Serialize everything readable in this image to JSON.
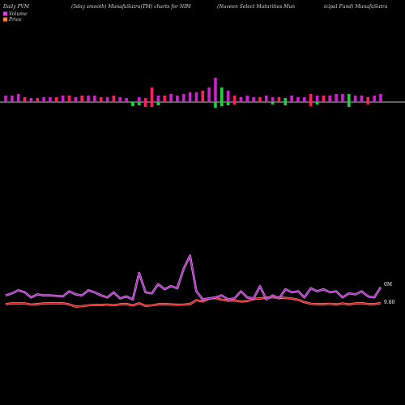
{
  "header": {
    "segments": [
      "Daily PVM",
      "(5day smooth) MunafaSutra(TM) charts for NIM",
      "(Nuveen Select Maturities Mun",
      "icipal Fund) MunafaSutra"
    ]
  },
  "legend": [
    {
      "label": "Volume",
      "color": "#e040e0"
    },
    {
      "label": "Price",
      "color": "#ff6020"
    }
  ],
  "chart_data": {
    "type": "line",
    "n": 60,
    "volume_bars": {
      "values": [
        8,
        8,
        10,
        6,
        5,
        5,
        6,
        6,
        6,
        8,
        8,
        6,
        8,
        8,
        8,
        6,
        6,
        8,
        6,
        5,
        -4,
        6,
        5,
        18,
        8,
        8,
        10,
        8,
        10,
        12,
        12,
        14,
        18,
        30,
        18,
        14,
        8,
        6,
        8,
        6,
        6,
        8,
        6,
        6,
        5,
        8,
        6,
        6,
        10,
        8,
        8,
        8,
        10,
        10,
        10,
        8,
        8,
        6,
        8,
        10
      ],
      "colors": [
        "#d020d0",
        "#d020d0",
        "#d020d0",
        "#ff2060",
        "#d020d0",
        "#ff2060",
        "#d020d0",
        "#d020d0",
        "#ff2060",
        "#d020d0",
        "#ff2060",
        "#d020d0",
        "#ff2060",
        "#d020d0",
        "#d020d0",
        "#ff2060",
        "#d020d0",
        "#ff2060",
        "#d020d0",
        "#d020d0",
        "#20d040",
        "#d020d0",
        "#ff2060",
        "#ff2060",
        "#d020d0",
        "#ff2060",
        "#d020d0",
        "#d020d0",
        "#d020d0",
        "#d020d0",
        "#d020d0",
        "#ff2060",
        "#d020d0",
        "#d020d0",
        "#20d040",
        "#d020d0",
        "#ff2060",
        "#d020d0",
        "#d020d0",
        "#d020d0",
        "#ff2060",
        "#d020d0",
        "#d020d0",
        "#ff2060",
        "#20d040",
        "#d020d0",
        "#d020d0",
        "#d020d0",
        "#ff2060",
        "#d020d0",
        "#ff2060",
        "#d020d0",
        "#d020d0",
        "#d020d0",
        "#20d040",
        "#d020d0",
        "#d020d0",
        "#ff2060",
        "#d020d0",
        "#d020d0"
      ],
      "down_values": [
        0,
        0,
        0,
        0,
        0,
        0,
        0,
        0,
        0,
        0,
        0,
        0,
        0,
        0,
        0,
        0,
        0,
        0,
        0,
        0,
        5,
        4,
        6,
        6,
        4,
        0,
        0,
        0,
        0,
        0,
        0,
        0,
        0,
        7,
        5,
        4,
        3,
        0,
        0,
        0,
        0,
        0,
        3,
        0,
        4,
        0,
        0,
        0,
        5,
        3,
        0,
        0,
        0,
        0,
        6,
        0,
        0,
        3,
        0,
        0
      ]
    },
    "volume_line": [
      18,
      22,
      28,
      24,
      14,
      20,
      18,
      18,
      17,
      16,
      26,
      20,
      18,
      28,
      24,
      18,
      14,
      24,
      12,
      16,
      10,
      62,
      24,
      22,
      40,
      30,
      36,
      32,
      70,
      96,
      26,
      10,
      12,
      14,
      18,
      10,
      12,
      26,
      14,
      12,
      36,
      10,
      18,
      12,
      30,
      24,
      26,
      14,
      32,
      26,
      30,
      24,
      26,
      14,
      22,
      20,
      26,
      16,
      14,
      34
    ],
    "price_line": [
      1.6,
      2.4,
      2.4,
      2.4,
      1.0,
      1.6,
      2.4,
      2.6,
      2.8,
      2.6,
      1.2,
      -1.4,
      -1.0,
      0.0,
      0.6,
      0.6,
      1.0,
      0.2,
      1.4,
      1.8,
      0.0,
      2.6,
      -0.6,
      0.0,
      1.4,
      1.6,
      1.2,
      0.8,
      1.0,
      1.6,
      6.4,
      4.8,
      8.6,
      9.0,
      7.0,
      5.8,
      6.0,
      4.8,
      5.2,
      7.8,
      8.6,
      9.4,
      10.0,
      9.6,
      9.2,
      8.4,
      6.8,
      4.0,
      2.0,
      1.6,
      1.6,
      2.0,
      1.2,
      2.4,
      1.2,
      2.4,
      2.8,
      1.6,
      1.6,
      2.8
    ],
    "right_labels": [
      "0M",
      "9.80"
    ]
  }
}
